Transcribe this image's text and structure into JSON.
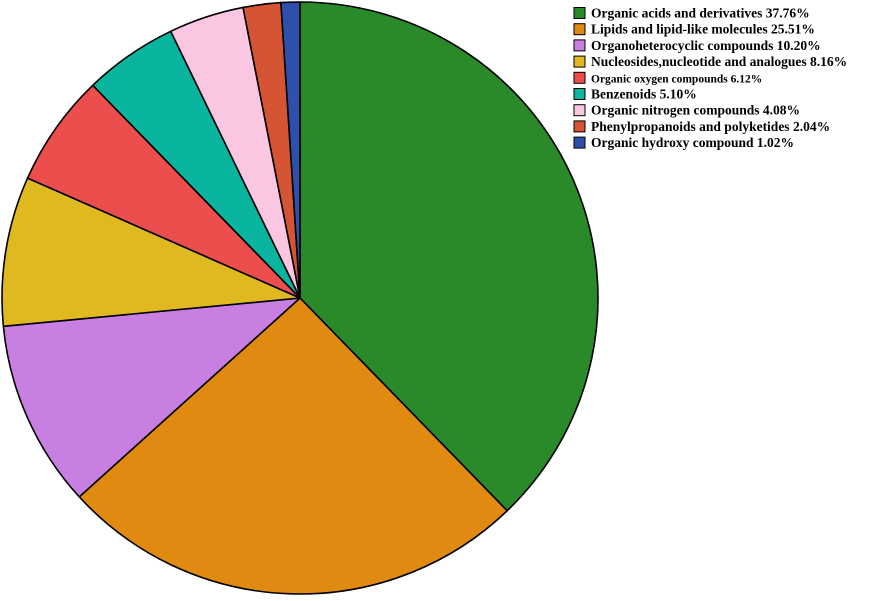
{
  "chart_data": {
    "type": "pie",
    "title": "",
    "start_angle_deg": 0,
    "direction": "clockwise",
    "legend_position": "top-right",
    "slices": [
      {
        "label": "Organic acids and derivatives 37.76%",
        "value": 37.76,
        "color": "#2a8a2a"
      },
      {
        "label": "Lipids and lipid-like molecules 25.51%",
        "value": 25.51,
        "color": "#e08a12"
      },
      {
        "label": "Organoheterocyclic compounds 10.20%",
        "value": 10.2,
        "color": "#c87fe2"
      },
      {
        "label": "Nucleosides,nucleotide and analogues 8.16%",
        "value": 8.16,
        "color": "#e0b820"
      },
      {
        "label": "Organic oxygen compounds 6.12%",
        "value": 6.12,
        "color": "#ec4e4e",
        "small_text": true
      },
      {
        "label": "Benzenoids 5.10%",
        "value": 5.1,
        "color": "#0ab5a0"
      },
      {
        "label": "Organic nitrogen compounds 4.08%",
        "value": 4.08,
        "color": "#fac6e2"
      },
      {
        "label": "Phenylpropanoids and polyketides 2.04%",
        "value": 2.04,
        "color": "#d45434"
      },
      {
        "label": "Organic hydroxy compound 1.02%",
        "value": 1.02,
        "color": "#2e4fac"
      }
    ]
  }
}
